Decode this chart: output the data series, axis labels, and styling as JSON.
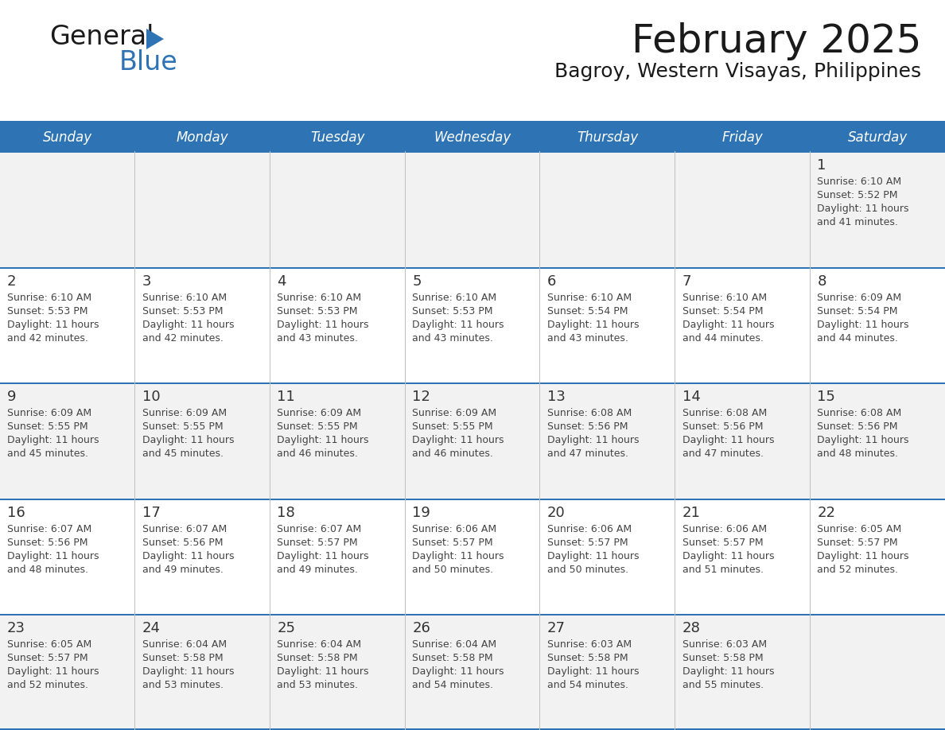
{
  "title": "February 2025",
  "subtitle": "Bagroy, Western Visayas, Philippines",
  "header_bg": "#2E74B5",
  "header_text": "#FFFFFF",
  "weekdays": [
    "Sunday",
    "Monday",
    "Tuesday",
    "Wednesday",
    "Thursday",
    "Friday",
    "Saturday"
  ],
  "row_bg_odd": "#F2F2F2",
  "row_bg_even": "#FFFFFF",
  "separator_color": "#2E74B5",
  "day_number_color": "#333333",
  "cell_text_color": "#444444",
  "calendar": [
    [
      null,
      null,
      null,
      null,
      null,
      null,
      1
    ],
    [
      2,
      3,
      4,
      5,
      6,
      7,
      8
    ],
    [
      9,
      10,
      11,
      12,
      13,
      14,
      15
    ],
    [
      16,
      17,
      18,
      19,
      20,
      21,
      22
    ],
    [
      23,
      24,
      25,
      26,
      27,
      28,
      null
    ]
  ],
  "sunrise": {
    "1": "6:10 AM",
    "2": "6:10 AM",
    "3": "6:10 AM",
    "4": "6:10 AM",
    "5": "6:10 AM",
    "6": "6:10 AM",
    "7": "6:10 AM",
    "8": "6:09 AM",
    "9": "6:09 AM",
    "10": "6:09 AM",
    "11": "6:09 AM",
    "12": "6:09 AM",
    "13": "6:08 AM",
    "14": "6:08 AM",
    "15": "6:08 AM",
    "16": "6:07 AM",
    "17": "6:07 AM",
    "18": "6:07 AM",
    "19": "6:06 AM",
    "20": "6:06 AM",
    "21": "6:06 AM",
    "22": "6:05 AM",
    "23": "6:05 AM",
    "24": "6:04 AM",
    "25": "6:04 AM",
    "26": "6:04 AM",
    "27": "6:03 AM",
    "28": "6:03 AM"
  },
  "sunset": {
    "1": "5:52 PM",
    "2": "5:53 PM",
    "3": "5:53 PM",
    "4": "5:53 PM",
    "5": "5:53 PM",
    "6": "5:54 PM",
    "7": "5:54 PM",
    "8": "5:54 PM",
    "9": "5:55 PM",
    "10": "5:55 PM",
    "11": "5:55 PM",
    "12": "5:55 PM",
    "13": "5:56 PM",
    "14": "5:56 PM",
    "15": "5:56 PM",
    "16": "5:56 PM",
    "17": "5:56 PM",
    "18": "5:57 PM",
    "19": "5:57 PM",
    "20": "5:57 PM",
    "21": "5:57 PM",
    "22": "5:57 PM",
    "23": "5:57 PM",
    "24": "5:58 PM",
    "25": "5:58 PM",
    "26": "5:58 PM",
    "27": "5:58 PM",
    "28": "5:58 PM"
  },
  "daylight_hours": {
    "1": 41,
    "2": 42,
    "3": 42,
    "4": 43,
    "5": 43,
    "6": 43,
    "7": 44,
    "8": 44,
    "9": 45,
    "10": 45,
    "11": 46,
    "12": 46,
    "13": 47,
    "14": 47,
    "15": 48,
    "16": 48,
    "17": 49,
    "18": 49,
    "19": 50,
    "20": 50,
    "21": 51,
    "22": 52,
    "23": 52,
    "24": 53,
    "25": 53,
    "26": 54,
    "27": 54,
    "28": 55
  },
  "logo_general_color": "#1a1a1a",
  "logo_blue_color": "#2E74B5",
  "title_fontsize": 36,
  "subtitle_fontsize": 18,
  "header_fontsize": 12,
  "day_num_fontsize": 13,
  "cell_fontsize": 9
}
